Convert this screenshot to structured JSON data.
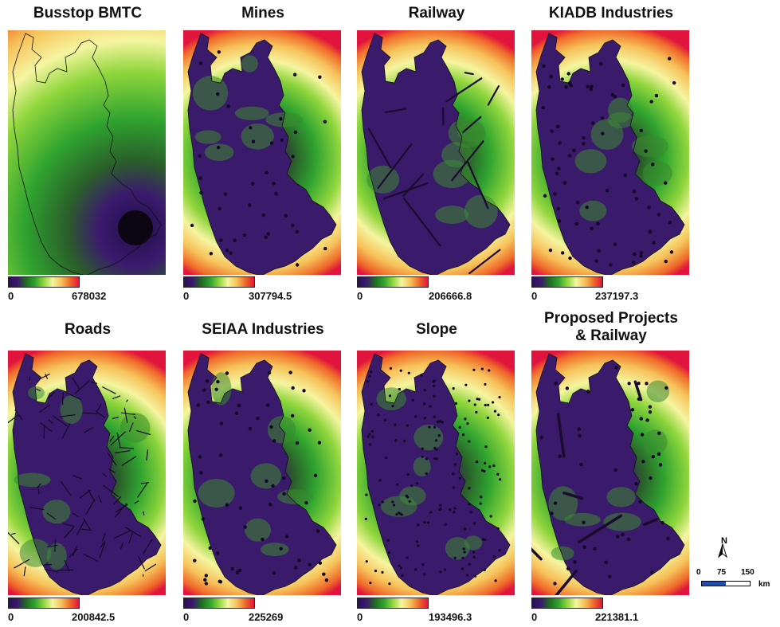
{
  "panels": [
    {
      "title": "Busstop BMTC",
      "min": "0",
      "max": "678032",
      "type": "busstop"
    },
    {
      "title": "Mines",
      "min": "0",
      "max": "307794.5",
      "type": "mines"
    },
    {
      "title": "Railway",
      "min": "0",
      "max": "206666.8",
      "type": "railway"
    },
    {
      "title": "KIADB Industries",
      "min": "0",
      "max": "237197.3",
      "type": "kiadb"
    },
    {
      "title": "Roads",
      "min": "0",
      "max": "200842.5",
      "type": "roads"
    },
    {
      "title": "SEIAA Industries",
      "min": "0",
      "max": "225269",
      "type": "seiaa"
    },
    {
      "title": "Slope",
      "min": "0",
      "max": "193496.3",
      "type": "slope"
    },
    {
      "title": "Proposed Projects\n& Railway",
      "min": "0",
      "max": "221381.1",
      "type": "proposed"
    }
  ],
  "scalebar": {
    "north": "N",
    "ticks": [
      "0",
      "75",
      "150"
    ],
    "unit": "km"
  },
  "colors": {
    "ramp": [
      "#2a1156",
      "#3b1a6e",
      "#1f6d1f",
      "#2fa32f",
      "#8fd63c",
      "#f5f5a0",
      "#f6c25a",
      "#f06a2a",
      "#e0143c"
    ]
  }
}
